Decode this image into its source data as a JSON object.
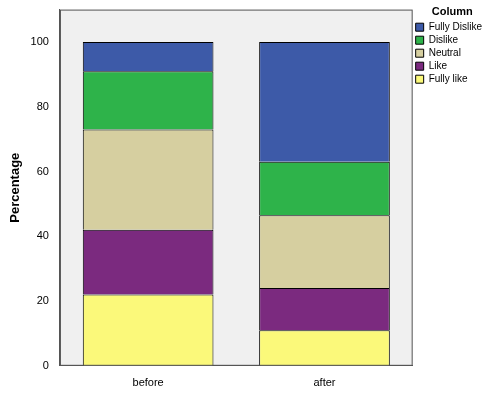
{
  "chart_data": {
    "type": "bar",
    "stacked": true,
    "ylabel": "Percentage",
    "legend_title": "Column",
    "legend": "upper right",
    "grid": false,
    "categories": [
      "before",
      "after"
    ],
    "series": [
      {
        "name": "Fully like",
        "color": "#fbf97a",
        "values": [
          22,
          11
        ]
      },
      {
        "name": "Like",
        "color": "#7b2a7f",
        "values": [
          20,
          13
        ]
      },
      {
        "name": "Neutral",
        "color": "#d6cfa0",
        "values": [
          31,
          22.5
        ]
      },
      {
        "name": "Dislike",
        "color": "#2eb34a",
        "values": [
          18,
          16.5
        ]
      },
      {
        "name": "Fully Dislike",
        "color": "#3d5aa8",
        "values": [
          9,
          37
        ]
      }
    ],
    "ylim": [
      0,
      110
    ],
    "yticks": [
      0,
      20,
      40,
      60,
      80,
      100
    ]
  }
}
